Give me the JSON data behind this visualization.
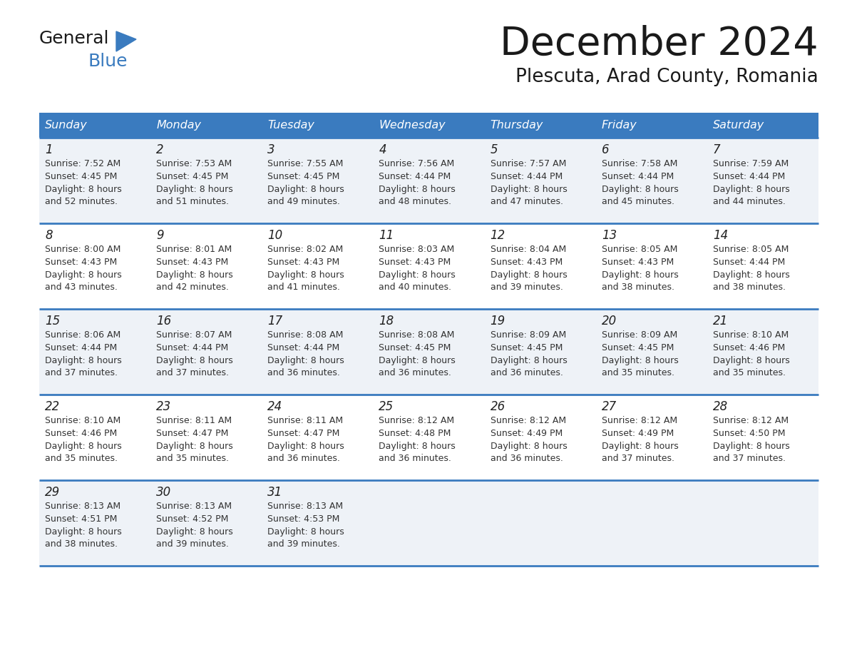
{
  "title": "December 2024",
  "subtitle": "Plescuta, Arad County, Romania",
  "header_bg_color": "#3a7bbf",
  "header_text_color": "#ffffff",
  "row_bg_even": "#eef2f7",
  "row_bg_odd": "#ffffff",
  "grid_line_color": "#3a7bbf",
  "days_of_week": [
    "Sunday",
    "Monday",
    "Tuesday",
    "Wednesday",
    "Thursday",
    "Friday",
    "Saturday"
  ],
  "weeks": [
    [
      {
        "day": 1,
        "sunrise": "7:52 AM",
        "sunset": "4:45 PM",
        "daylight": "8 hours and 52 minutes."
      },
      {
        "day": 2,
        "sunrise": "7:53 AM",
        "sunset": "4:45 PM",
        "daylight": "8 hours and 51 minutes."
      },
      {
        "day": 3,
        "sunrise": "7:55 AM",
        "sunset": "4:45 PM",
        "daylight": "8 hours and 49 minutes."
      },
      {
        "day": 4,
        "sunrise": "7:56 AM",
        "sunset": "4:44 PM",
        "daylight": "8 hours and 48 minutes."
      },
      {
        "day": 5,
        "sunrise": "7:57 AM",
        "sunset": "4:44 PM",
        "daylight": "8 hours and 47 minutes."
      },
      {
        "day": 6,
        "sunrise": "7:58 AM",
        "sunset": "4:44 PM",
        "daylight": "8 hours and 45 minutes."
      },
      {
        "day": 7,
        "sunrise": "7:59 AM",
        "sunset": "4:44 PM",
        "daylight": "8 hours and 44 minutes."
      }
    ],
    [
      {
        "day": 8,
        "sunrise": "8:00 AM",
        "sunset": "4:43 PM",
        "daylight": "8 hours and 43 minutes."
      },
      {
        "day": 9,
        "sunrise": "8:01 AM",
        "sunset": "4:43 PM",
        "daylight": "8 hours and 42 minutes."
      },
      {
        "day": 10,
        "sunrise": "8:02 AM",
        "sunset": "4:43 PM",
        "daylight": "8 hours and 41 minutes."
      },
      {
        "day": 11,
        "sunrise": "8:03 AM",
        "sunset": "4:43 PM",
        "daylight": "8 hours and 40 minutes."
      },
      {
        "day": 12,
        "sunrise": "8:04 AM",
        "sunset": "4:43 PM",
        "daylight": "8 hours and 39 minutes."
      },
      {
        "day": 13,
        "sunrise": "8:05 AM",
        "sunset": "4:43 PM",
        "daylight": "8 hours and 38 minutes."
      },
      {
        "day": 14,
        "sunrise": "8:05 AM",
        "sunset": "4:44 PM",
        "daylight": "8 hours and 38 minutes."
      }
    ],
    [
      {
        "day": 15,
        "sunrise": "8:06 AM",
        "sunset": "4:44 PM",
        "daylight": "8 hours and 37 minutes."
      },
      {
        "day": 16,
        "sunrise": "8:07 AM",
        "sunset": "4:44 PM",
        "daylight": "8 hours and 37 minutes."
      },
      {
        "day": 17,
        "sunrise": "8:08 AM",
        "sunset": "4:44 PM",
        "daylight": "8 hours and 36 minutes."
      },
      {
        "day": 18,
        "sunrise": "8:08 AM",
        "sunset": "4:45 PM",
        "daylight": "8 hours and 36 minutes."
      },
      {
        "day": 19,
        "sunrise": "8:09 AM",
        "sunset": "4:45 PM",
        "daylight": "8 hours and 36 minutes."
      },
      {
        "day": 20,
        "sunrise": "8:09 AM",
        "sunset": "4:45 PM",
        "daylight": "8 hours and 35 minutes."
      },
      {
        "day": 21,
        "sunrise": "8:10 AM",
        "sunset": "4:46 PM",
        "daylight": "8 hours and 35 minutes."
      }
    ],
    [
      {
        "day": 22,
        "sunrise": "8:10 AM",
        "sunset": "4:46 PM",
        "daylight": "8 hours and 35 minutes."
      },
      {
        "day": 23,
        "sunrise": "8:11 AM",
        "sunset": "4:47 PM",
        "daylight": "8 hours and 35 minutes."
      },
      {
        "day": 24,
        "sunrise": "8:11 AM",
        "sunset": "4:47 PM",
        "daylight": "8 hours and 36 minutes."
      },
      {
        "day": 25,
        "sunrise": "8:12 AM",
        "sunset": "4:48 PM",
        "daylight": "8 hours and 36 minutes."
      },
      {
        "day": 26,
        "sunrise": "8:12 AM",
        "sunset": "4:49 PM",
        "daylight": "8 hours and 36 minutes."
      },
      {
        "day": 27,
        "sunrise": "8:12 AM",
        "sunset": "4:49 PM",
        "daylight": "8 hours and 37 minutes."
      },
      {
        "day": 28,
        "sunrise": "8:12 AM",
        "sunset": "4:50 PM",
        "daylight": "8 hours and 37 minutes."
      }
    ],
    [
      {
        "day": 29,
        "sunrise": "8:13 AM",
        "sunset": "4:51 PM",
        "daylight": "8 hours and 38 minutes."
      },
      {
        "day": 30,
        "sunrise": "8:13 AM",
        "sunset": "4:52 PM",
        "daylight": "8 hours and 39 minutes."
      },
      {
        "day": 31,
        "sunrise": "8:13 AM",
        "sunset": "4:53 PM",
        "daylight": "8 hours and 39 minutes."
      },
      null,
      null,
      null,
      null
    ]
  ]
}
